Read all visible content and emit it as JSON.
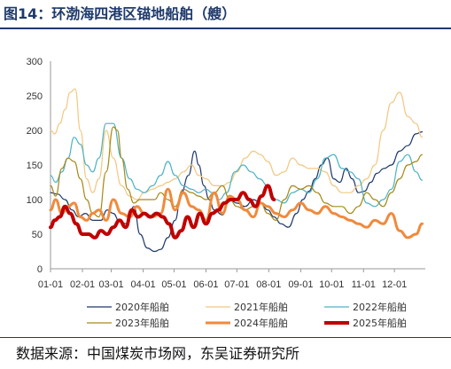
{
  "title": "图14：环渤海四港区锚地船舶（艘）",
  "source": "数据来源：中国煤炭市场网，东吴证券研究所",
  "chart_data": {
    "type": "line",
    "title": "",
    "xlabel": "",
    "ylabel": "",
    "ylim": [
      0,
      300
    ],
    "xlim": [
      1,
      365
    ],
    "y_ticks": [
      "0",
      "50",
      "100",
      "150",
      "200",
      "250",
      "300"
    ],
    "x_ticks": [
      {
        "label": "01-01",
        "day": 1
      },
      {
        "label": "02-01",
        "day": 32
      },
      {
        "label": "03-01",
        "day": 60
      },
      {
        "label": "04-01",
        "day": 91
      },
      {
        "label": "05-01",
        "day": 121
      },
      {
        "label": "06-01",
        "day": 152
      },
      {
        "label": "07-01",
        "day": 182
      },
      {
        "label": "08-01",
        "day": 213
      },
      {
        "label": "09-01",
        "day": 244
      },
      {
        "label": "10-01",
        "day": 274
      },
      {
        "label": "11-01",
        "day": 305
      },
      {
        "label": "12-01",
        "day": 335
      }
    ],
    "grid": false,
    "legend_position": "bottom",
    "series": [
      {
        "name": "2020年船舶",
        "color": "#1f3a6b",
        "width": 1.2,
        "x": [
          1,
          8,
          15,
          22,
          28,
          35,
          42,
          50,
          56,
          62,
          68,
          75,
          82,
          88,
          95,
          102,
          108,
          115,
          122,
          128,
          135,
          141,
          145,
          150,
          155,
          160,
          168,
          175,
          182,
          190,
          198,
          205,
          212,
          218,
          225,
          232,
          240,
          246,
          252,
          258,
          264,
          270,
          276,
          282,
          288,
          294,
          300,
          306,
          312,
          318,
          325,
          332,
          340,
          348,
          356,
          362
        ],
        "y": [
          110,
          108,
          100,
          85,
          75,
          80,
          70,
          70,
          85,
          80,
          68,
          65,
          90,
          50,
          30,
          25,
          28,
          45,
          70,
          110,
          135,
          170,
          150,
          120,
          100,
          85,
          78,
          100,
          95,
          90,
          100,
          95,
          85,
          75,
          65,
          60,
          80,
          100,
          112,
          130,
          150,
          160,
          130,
          125,
          145,
          130,
          110,
          112,
          125,
          138,
          145,
          150,
          170,
          178,
          195,
          198
        ]
      },
      {
        "name": "2021年船舶",
        "color": "#f2c882",
        "width": 1.2,
        "x": [
          1,
          5,
          10,
          15,
          20,
          25,
          30,
          36,
          42,
          48,
          55,
          62,
          70,
          78,
          85,
          92,
          100,
          108,
          115,
          122,
          130,
          138,
          145,
          152,
          160,
          168,
          175,
          182,
          190,
          198,
          205,
          212,
          220,
          228,
          236,
          244,
          252,
          260,
          268,
          276,
          284,
          292,
          300,
          308,
          316,
          324,
          332,
          340,
          348,
          356,
          362
        ],
        "y": [
          200,
          195,
          210,
          230,
          255,
          260,
          200,
          130,
          110,
          130,
          200,
          160,
          120,
          105,
          100,
          110,
          115,
          120,
          125,
          130,
          140,
          150,
          135,
          130,
          120,
          120,
          125,
          140,
          160,
          170,
          165,
          155,
          135,
          140,
          160,
          150,
          145,
          145,
          140,
          120,
          110,
          110,
          120,
          130,
          150,
          200,
          240,
          255,
          220,
          210,
          190
        ]
      },
      {
        "name": "2022年船舶",
        "color": "#4eb3c4",
        "width": 1.2,
        "x": [
          1,
          6,
          12,
          18,
          24,
          30,
          36,
          42,
          48,
          55,
          62,
          70,
          78,
          85,
          92,
          100,
          108,
          115,
          122,
          130,
          138,
          145,
          152,
          158,
          165,
          172,
          180,
          188,
          196,
          204,
          212,
          220,
          228,
          236,
          244,
          252,
          260,
          268,
          276,
          284,
          292,
          300,
          308,
          316,
          324,
          332,
          340,
          348,
          356,
          362
        ],
        "y": [
          135,
          125,
          140,
          160,
          190,
          180,
          150,
          140,
          160,
          210,
          210,
          160,
          130,
          115,
          110,
          120,
          135,
          155,
          135,
          120,
          115,
          110,
          115,
          110,
          100,
          110,
          140,
          150,
          140,
          130,
          120,
          100,
          95,
          110,
          115,
          110,
          130,
          160,
          165,
          145,
          140,
          130,
          95,
          90,
          100,
          115,
          155,
          165,
          140,
          128
        ]
      },
      {
        "name": "2023年船舶",
        "color": "#a68a1a",
        "width": 1.2,
        "x": [
          1,
          6,
          12,
          18,
          24,
          30,
          36,
          42,
          48,
          55,
          62,
          66,
          70,
          76,
          82,
          88,
          95,
          102,
          108,
          115,
          122,
          130,
          138,
          145,
          152,
          160,
          168,
          175,
          182,
          190,
          198,
          205,
          212,
          220,
          228,
          236,
          244,
          252,
          260,
          268,
          276,
          284,
          292,
          300,
          308,
          316,
          324,
          332,
          340,
          348,
          356,
          362
        ],
        "y": [
          120,
          105,
          145,
          160,
          155,
          130,
          100,
          80,
          75,
          140,
          205,
          200,
          160,
          115,
          95,
          100,
          100,
          100,
          110,
          100,
          90,
          115,
          110,
          105,
          100,
          110,
          120,
          100,
          90,
          85,
          90,
          95,
          80,
          70,
          100,
          120,
          115,
          120,
          110,
          95,
          90,
          90,
          80,
          90,
          110,
          100,
          90,
          110,
          130,
          150,
          155,
          165
        ]
      },
      {
        "name": "2024年船舶",
        "color": "#f08a3c",
        "width": 3,
        "x": [
          1,
          6,
          12,
          18,
          24,
          30,
          36,
          42,
          48,
          55,
          62,
          70,
          78,
          85,
          92,
          100,
          108,
          115,
          122,
          130,
          138,
          145,
          152,
          160,
          168,
          175,
          182,
          190,
          198,
          205,
          212,
          220,
          228,
          236,
          244,
          252,
          260,
          268,
          276,
          284,
          292,
          300,
          308,
          316,
          324,
          332,
          340,
          348,
          356,
          362
        ],
        "y": [
          85,
          100,
          80,
          90,
          95,
          75,
          70,
          80,
          85,
          70,
          100,
          80,
          75,
          90,
          80,
          75,
          80,
          115,
          85,
          110,
          90,
          85,
          70,
          110,
          80,
          105,
          100,
          85,
          75,
          95,
          90,
          80,
          75,
          85,
          95,
          85,
          80,
          90,
          80,
          75,
          70,
          65,
          60,
          70,
          65,
          80,
          55,
          45,
          50,
          65
        ]
      },
      {
        "name": "2025年船舶",
        "color": "#c00000",
        "width": 4,
        "x": [
          1,
          5,
          10,
          15,
          20,
          26,
          32,
          38,
          44,
          50,
          56,
          62,
          68,
          74,
          80,
          86,
          92,
          98,
          104,
          110,
          116,
          122,
          128,
          134,
          140,
          146,
          152,
          158,
          164,
          170,
          176,
          182,
          188,
          194,
          200,
          206,
          212,
          218
        ],
        "y": [
          60,
          70,
          75,
          90,
          80,
          65,
          50,
          50,
          45,
          55,
          50,
          60,
          70,
          60,
          85,
          75,
          80,
          75,
          80,
          75,
          65,
          45,
          55,
          75,
          60,
          80,
          65,
          80,
          85,
          95,
          100,
          100,
          110,
          100,
          90,
          105,
          120,
          100
        ]
      }
    ]
  }
}
